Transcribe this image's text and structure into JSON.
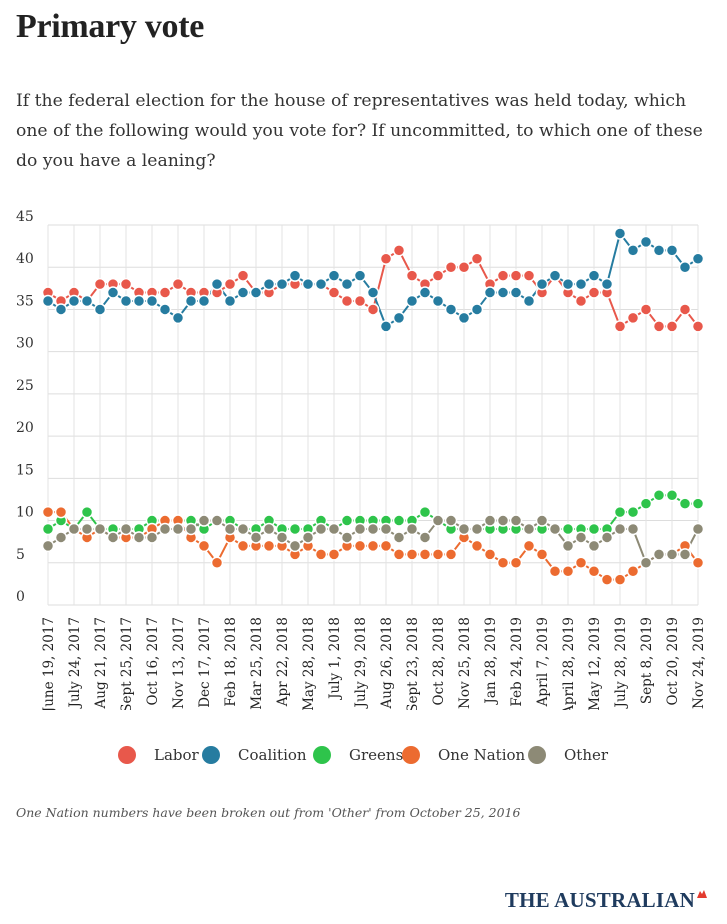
{
  "title": "Primary vote",
  "question": "If the federal election for the house of representatives was held today, which one of the following would you vote for? If uncommitted, to which one of these do you have a leaning?",
  "footnote": "One Nation numbers have been broken out from 'Other' from October 25, 2016",
  "brand": "THE AUSTRALIAN",
  "colors": {
    "Labor": "#e8584b",
    "Coalition": "#267ca0",
    "Greens": "#2ec44b",
    "One Nation": "#ec6b30",
    "Other": "#8d8a76"
  },
  "legend": [
    {
      "key": "labor",
      "label": "Labor",
      "color": "#e8584b"
    },
    {
      "key": "coalition",
      "label": "Coalition",
      "color": "#267ca0"
    },
    {
      "key": "greens",
      "label": "Greens",
      "color": "#2ec44b"
    },
    {
      "key": "one_nation",
      "label": "One Nation",
      "color": "#ec6b30"
    },
    {
      "key": "other",
      "label": "Other",
      "color": "#8d8a76"
    }
  ],
  "chart_data": {
    "type": "line",
    "title": "Primary vote",
    "xlabel": "",
    "ylabel": "",
    "ylim": [
      0,
      45
    ],
    "yticks": [
      0,
      5,
      10,
      15,
      20,
      25,
      30,
      35,
      40,
      45
    ],
    "grid": true,
    "legend_position": "bottom",
    "x_tick_labels": [
      "June 19, 2017",
      "July 24, 2017",
      "Aug 21, 2017",
      "Sept 25, 2017",
      "Oct 16, 2017",
      "Nov 13, 2017",
      "Dec 17, 2017",
      "Feb 18, 2018",
      "Mar 25, 2018",
      "Apr 22, 2018",
      "May 28, 2018",
      "July 1, 2018",
      "July 29, 2018",
      "Aug 26, 2018",
      "Sept 23, 2018",
      "Oct 28, 2018",
      "Nov 25, 2018",
      "Jan 28, 2019",
      "Feb 24, 2019",
      "April 7, 2019",
      "April 28, 2019",
      "May 12, 2019",
      "July 28, 2019",
      "Sept 8, 2019",
      "Oct 20, 2019",
      "Nov 24, 2019"
    ],
    "x_tick_every": 2,
    "series": [
      {
        "name": "Labor",
        "color": "#e8584b",
        "values": [
          37,
          36,
          37,
          36,
          38,
          38,
          38,
          37,
          37,
          37,
          38,
          37,
          37,
          37,
          38,
          39,
          37,
          37,
          38,
          38,
          38,
          38,
          37,
          36,
          36,
          35,
          41,
          42,
          39,
          38,
          39,
          40,
          40,
          41,
          38,
          39,
          39,
          39,
          37,
          39,
          37,
          36,
          37,
          37,
          33,
          34,
          35,
          33,
          33,
          35,
          33
        ]
      },
      {
        "name": "Coalition",
        "color": "#267ca0",
        "values": [
          36,
          35,
          36,
          36,
          35,
          37,
          36,
          36,
          36,
          35,
          34,
          36,
          36,
          38,
          36,
          37,
          37,
          38,
          38,
          39,
          38,
          38,
          39,
          38,
          39,
          37,
          33,
          34,
          36,
          37,
          36,
          35,
          34,
          35,
          37,
          37,
          37,
          36,
          38,
          39,
          38,
          38,
          39,
          38,
          44,
          42,
          43,
          42,
          42,
          40,
          41
        ]
      },
      {
        "name": "Greens",
        "color": "#2ec44b",
        "values": [
          9,
          10,
          9,
          11,
          9,
          9,
          9,
          9,
          10,
          10,
          10,
          10,
          9,
          10,
          10,
          9,
          9,
          10,
          9,
          9,
          9,
          10,
          9,
          10,
          10,
          10,
          10,
          10,
          10,
          11,
          10,
          9,
          9,
          9,
          9,
          9,
          9,
          9,
          9,
          9,
          9,
          9,
          9,
          9,
          11,
          11,
          12,
          13,
          13,
          12,
          12
        ]
      },
      {
        "name": "One Nation",
        "color": "#ec6b30",
        "values": [
          11,
          11,
          9,
          8,
          9,
          8,
          8,
          8,
          9,
          10,
          10,
          8,
          7,
          5,
          8,
          7,
          7,
          7,
          7,
          6,
          7,
          6,
          6,
          7,
          7,
          7,
          7,
          6,
          6,
          6,
          6,
          6,
          8,
          7,
          6,
          5,
          5,
          7,
          6,
          4,
          4,
          5,
          4,
          3,
          3,
          4,
          5,
          6,
          6,
          7,
          5
        ]
      },
      {
        "name": "Other",
        "color": "#8d8a76",
        "values": [
          7,
          8,
          9,
          9,
          9,
          8,
          9,
          8,
          8,
          9,
          9,
          9,
          10,
          10,
          9,
          9,
          8,
          9,
          8,
          7,
          8,
          9,
          9,
          8,
          9,
          9,
          9,
          8,
          9,
          8,
          10,
          10,
          9,
          9,
          10,
          10,
          10,
          9,
          10,
          9,
          7,
          8,
          7,
          8,
          9,
          9,
          5,
          6,
          6,
          6,
          9
        ]
      }
    ]
  }
}
